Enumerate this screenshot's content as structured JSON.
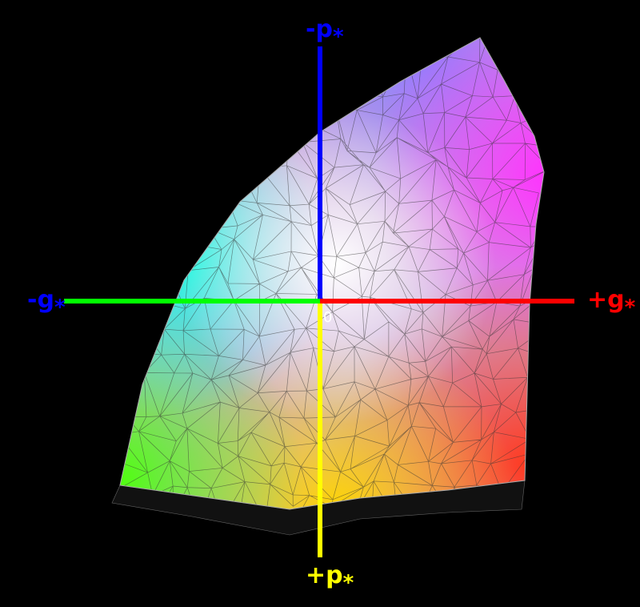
{
  "labels": {
    "top": {
      "main": "-p",
      "sub": "*"
    },
    "right": {
      "main": "+g",
      "sub": "*"
    },
    "left": {
      "main": "-g",
      "sub": "*"
    },
    "bottom": {
      "main": "+p",
      "sub": "*"
    }
  },
  "origin": "0"
}
